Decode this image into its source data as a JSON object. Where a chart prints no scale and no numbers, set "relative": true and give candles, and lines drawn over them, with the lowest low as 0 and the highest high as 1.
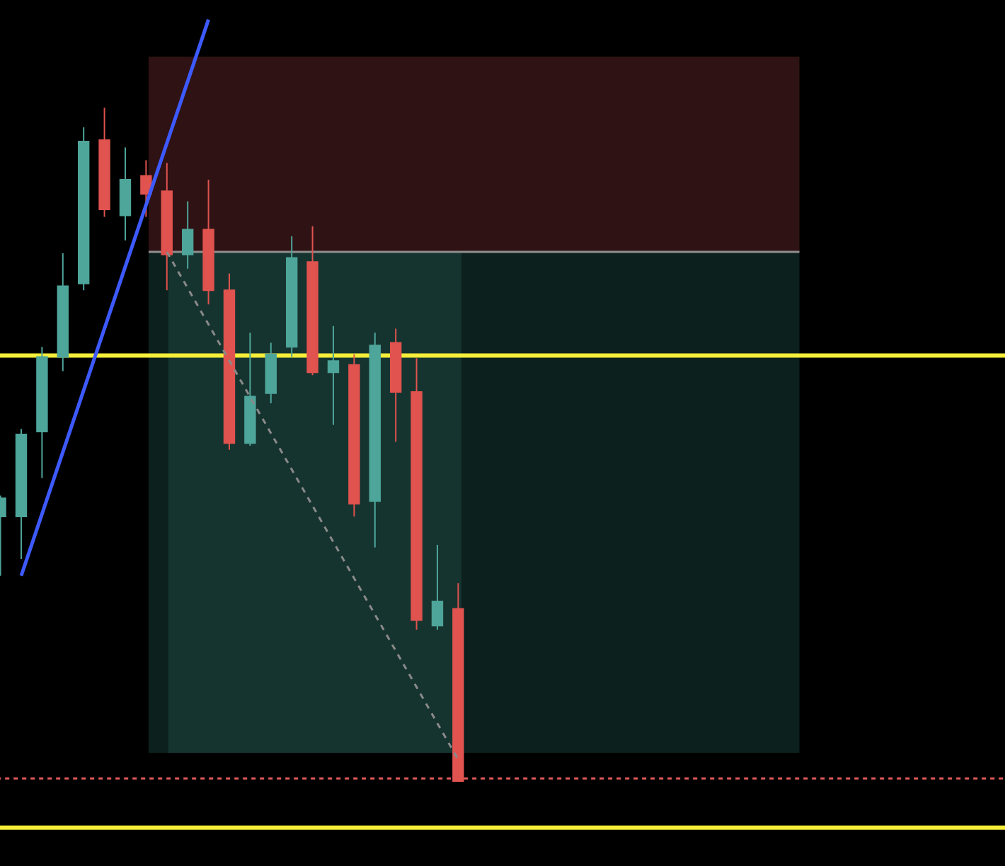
{
  "chart_data": {
    "type": "candlestick",
    "relative": true,
    "categories": [
      null,
      null,
      null,
      null,
      null,
      null,
      null,
      null,
      null,
      null,
      null,
      null,
      null,
      null,
      null,
      null,
      null,
      null,
      null,
      null,
      null,
      null,
      null
    ],
    "ohlc": [
      [
        0.393,
        0.424,
        0.305,
        0.42
      ],
      [
        0.393,
        0.523,
        0.33,
        0.515
      ],
      [
        0.519,
        0.645,
        0.45,
        0.63
      ],
      [
        0.63,
        0.784,
        0.609,
        0.735
      ],
      [
        0.739,
        0.971,
        0.729,
        0.95
      ],
      [
        0.952,
        1,
        0.838,
        0.849
      ],
      [
        0.84,
        0.941,
        0.803,
        0.893
      ],
      [
        0.899,
        0.922,
        0.838,
        0.872
      ],
      [
        0.876,
        0.918,
        0.729,
        0.782
      ],
      [
        0.782,
        0.861,
        0.761,
        0.819
      ],
      [
        0.819,
        0.893,
        0.708,
        0.729
      ],
      [
        0.729,
        0.754,
        0.492,
        0.502
      ],
      [
        0.502,
        0.666,
        0.498,
        0.571
      ],
      [
        0.576,
        0.651,
        0.561,
        0.634
      ],
      [
        0.645,
        0.809,
        0.63,
        0.777
      ],
      [
        0.771,
        0.824,
        0.603,
        0.607
      ],
      [
        0.607,
        0.676,
        0.529,
        0.624
      ],
      [
        0.618,
        0.634,
        0.393,
        0.412
      ],
      [
        0.416,
        0.666,
        0.347,
        0.647
      ],
      [
        0.651,
        0.672,
        0.504,
        0.578
      ],
      [
        0.578,
        0.628,
        0.225,
        0.239
      ],
      [
        0.231,
        0.351,
        0.225,
        0.267
      ],
      [
        0.256,
        0.294,
        0,
        0
      ]
    ],
    "colors": [
      "#4ea59a",
      "#4ea59a",
      "#4ea59a",
      "#4ea59a",
      "#4ea59a",
      "#e0534f",
      "#4ea59a",
      "#e0534f",
      "#e0534f",
      "#4ea59a",
      "#e0534f",
      "#e0534f",
      "#4ea59a",
      "#4ea59a",
      "#4ea59a",
      "#e0534f",
      "#4ea59a",
      "#e0534f",
      "#4ea59a",
      "#e0534f",
      "#e0534f",
      "#4ea59a",
      "#e0534f"
    ],
    "series": [
      {
        "type": "line",
        "color": "#3d5afe",
        "values": [
          null,
          0.305,
          null,
          null,
          null,
          null,
          null,
          null,
          null,
          null,
          1.131,
          null,
          null,
          null,
          null,
          null,
          null,
          null,
          null,
          null,
          null,
          null,
          null
        ]
      },
      {
        "type": "line",
        "color": "#8a8a8a",
        "line_style": "dashed",
        "values": [
          null,
          null,
          null,
          null,
          null,
          null,
          null,
          null,
          0.786,
          null,
          null,
          null,
          null,
          null,
          null,
          null,
          null,
          null,
          null,
          null,
          null,
          null,
          0.032
        ]
      }
    ],
    "ref_lines": [
      {
        "axis": "y",
        "value": 0.632,
        "color": "#f5ee3a"
      },
      {
        "axis": "y",
        "value": -0.069,
        "color": "#f5ee3a"
      },
      {
        "axis": "y",
        "value": 0.004,
        "color": "#e05a5a",
        "line_style": "dotted"
      },
      {
        "axis": "y",
        "value": 0.786,
        "color": "#8f8f8f"
      }
    ],
    "bands": [
      {
        "axis": "y",
        "from": 0.786,
        "to": 1.076,
        "color": "#2f1214"
      },
      {
        "axis": "y",
        "from": 0.042,
        "to": 0.786,
        "color": "#0c201d"
      },
      {
        "axis": "y",
        "from": 0.042,
        "to": 0.786,
        "color": "#16342f"
      }
    ]
  }
}
